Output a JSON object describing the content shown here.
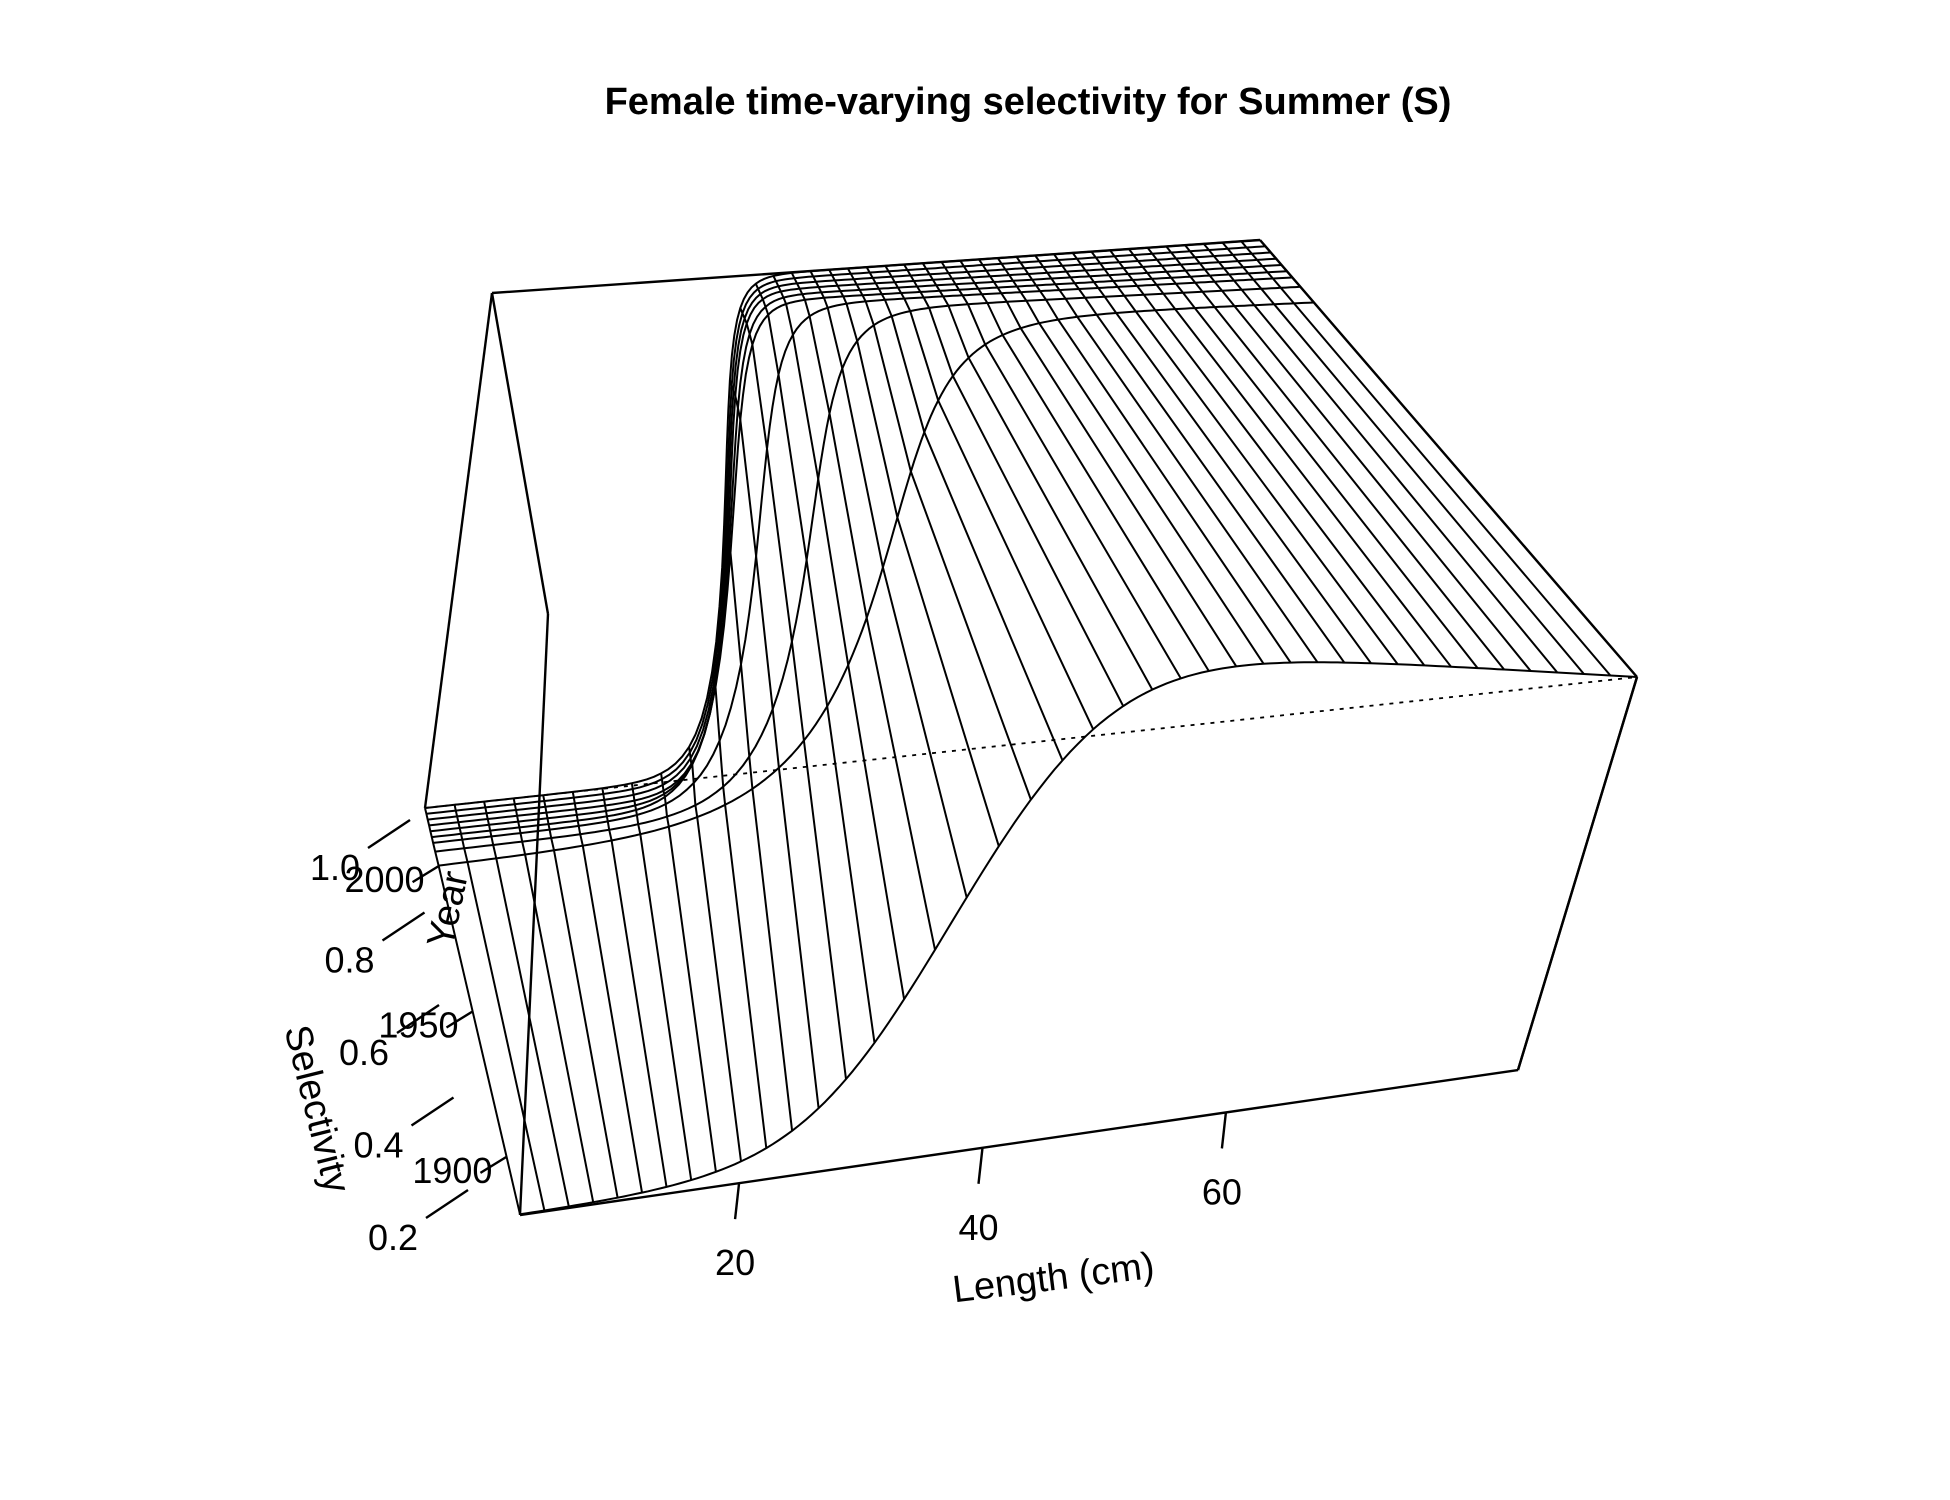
{
  "chart_data": {
    "type": "surface",
    "title": "Female time-varying selectivity for Summer (S)",
    "xlabel": "Length (cm)",
    "ylabel": "Year",
    "zlabel": "Selectivity",
    "xlim": [
      2,
      84
    ],
    "ylim": [
      1880,
      2020
    ],
    "zlim": [
      0.2,
      1.0
    ],
    "x_ticks": [
      20,
      40,
      60
    ],
    "y_ticks": [
      1900,
      1950,
      2000
    ],
    "z_ticks": [
      "0.2",
      "0.4",
      "0.6",
      "0.8",
      "1.0"
    ],
    "length_bins": [
      2,
      4,
      6,
      8,
      10,
      12,
      14,
      16,
      18,
      20,
      22,
      24,
      26,
      28,
      30,
      32,
      34,
      36,
      38,
      40,
      42,
      44,
      46,
      48,
      50,
      52,
      54,
      56,
      58,
      60,
      62,
      64,
      66,
      68,
      70,
      72,
      74,
      76,
      78,
      80,
      82,
      84
    ],
    "year_lines": [
      1880,
      2000,
      2005,
      2008,
      2010,
      2012,
      2014,
      2016,
      2018,
      2020
    ],
    "selectivity_by_year": [
      {
        "year": 1880,
        "L50": 36,
        "slope": 5.0
      },
      {
        "year": 2000,
        "L50": 36,
        "slope": 5.0
      },
      {
        "year": 2005,
        "L50": 30,
        "slope": 3.0
      },
      {
        "year": 2008,
        "L50": 26,
        "slope": 2.2
      },
      {
        "year": 2010,
        "L50": 24,
        "slope": 1.7
      },
      {
        "year": 2012,
        "L50": 24,
        "slope": 1.6
      },
      {
        "year": 2014,
        "L50": 24,
        "slope": 1.5
      },
      {
        "year": 2016,
        "L50": 24,
        "slope": 1.5
      },
      {
        "year": 2018,
        "L50": 24,
        "slope": 1.5
      },
      {
        "year": 2020,
        "L50": 24,
        "slope": 1.5
      }
    ]
  }
}
